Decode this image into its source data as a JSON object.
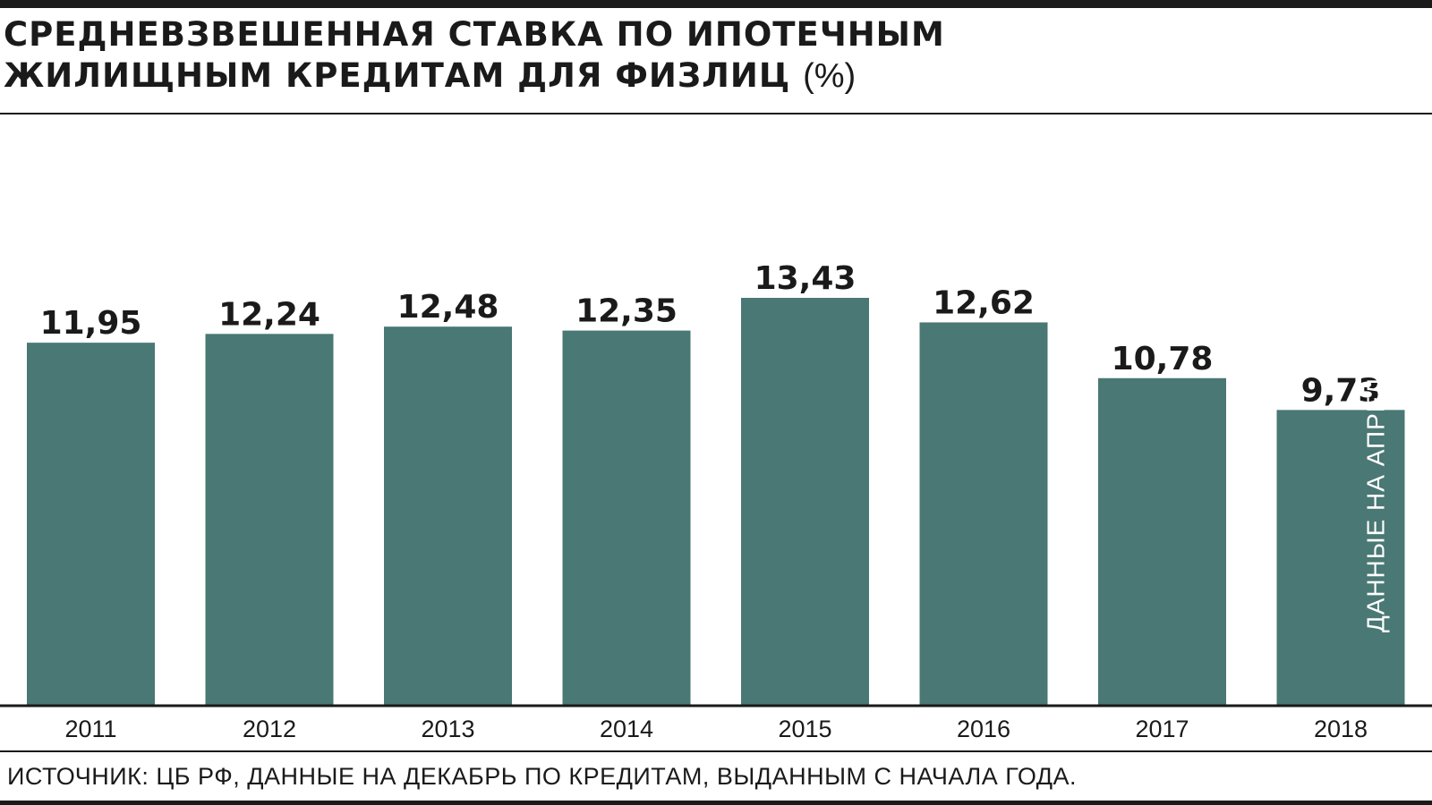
{
  "header": {
    "title_line1": "СРЕДНЕВЗВЕШЕННАЯ СТАВКА ПО ИПОТЕЧНЫМ",
    "title_line2": "ЖИЛИЩНЫМ КРЕДИТАМ ДЛЯ ФИЗЛИЦ",
    "title_unit": "(%)"
  },
  "chart_data": {
    "type": "bar",
    "title": "СРЕДНЕВЗВЕШЕННАЯ СТАВКА ПО ИПОТЕЧНЫМ ЖИЛИЩНЫМ КРЕДИТАМ ДЛЯ ФИЗЛИЦ (%)",
    "categories": [
      "2011",
      "2012",
      "2013",
      "2014",
      "2015",
      "2016",
      "2017",
      "2018"
    ],
    "values": [
      11.95,
      12.24,
      12.48,
      12.35,
      13.43,
      12.62,
      10.78,
      9.73
    ],
    "value_labels": [
      "11,95",
      "12,24",
      "12,48",
      "12,35",
      "13,43",
      "12,62",
      "10,78",
      "9,73"
    ],
    "annotations": [
      {
        "category": "2018",
        "text": "ДАННЫЕ НА АПРЕЛЬ"
      }
    ],
    "xlabel": "",
    "ylabel": "",
    "ylim": [
      0,
      13.43
    ],
    "grid": false,
    "legend": "none",
    "colors": {
      "bar": "#4a7874",
      "text": "#1a1a1a",
      "annotation_text": "#ffffff"
    }
  },
  "footer": {
    "source": "ИСТОЧНИК: ЦБ РФ, ДАННЫЕ НА ДЕКАБРЬ ПО КРЕДИТАМ, ВЫДАННЫМ С НАЧАЛА ГОДА."
  }
}
